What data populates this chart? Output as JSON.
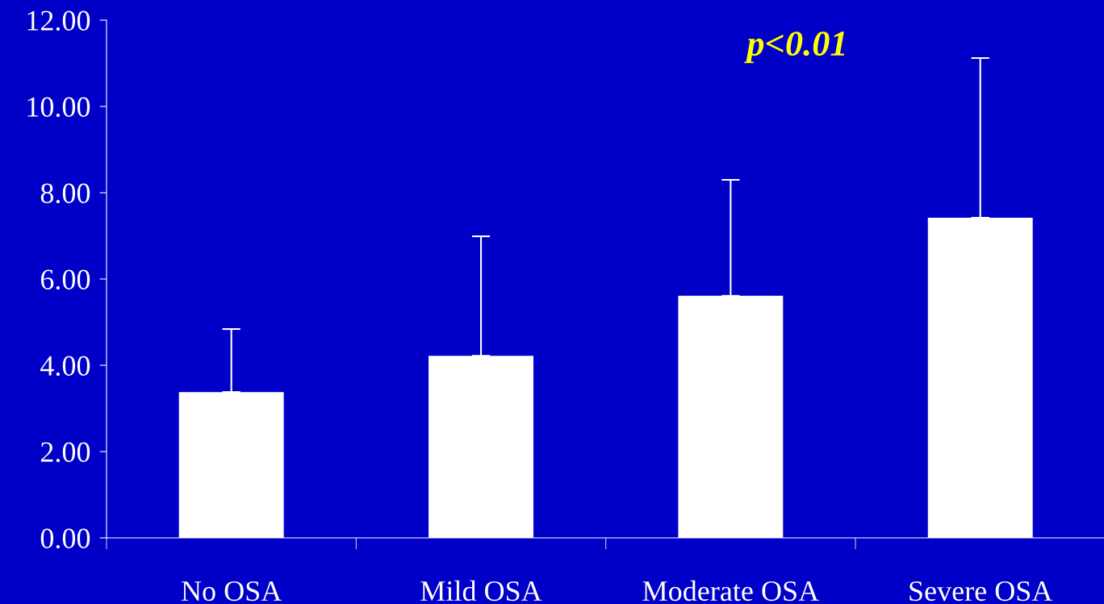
{
  "chart_data": {
    "type": "bar",
    "categories": [
      "No OSA",
      "Mild OSA",
      "Moderate OSA",
      "Severe OSA"
    ],
    "values": [
      3.38,
      4.22,
      5.61,
      7.42
    ],
    "errors": [
      [
        3.38,
        4.84
      ],
      [
        4.22,
        6.99
      ],
      [
        5.61,
        8.3
      ],
      [
        7.42,
        11.12
      ]
    ],
    "color": "#ffffff",
    "ylim": [
      0,
      12
    ],
    "yticks": [
      {
        "value": 0,
        "label": "0.00"
      },
      {
        "value": 2,
        "label": "2.00"
      },
      {
        "value": 4,
        "label": "4.00"
      },
      {
        "value": 6,
        "label": "6.00"
      },
      {
        "value": 8,
        "label": "8.00"
      },
      {
        "value": 10,
        "label": "10.00"
      },
      {
        "value": 12,
        "label": "12.00"
      }
    ],
    "annotations": [
      "p<0.01"
    ],
    "grid": false,
    "legend": false
  }
}
